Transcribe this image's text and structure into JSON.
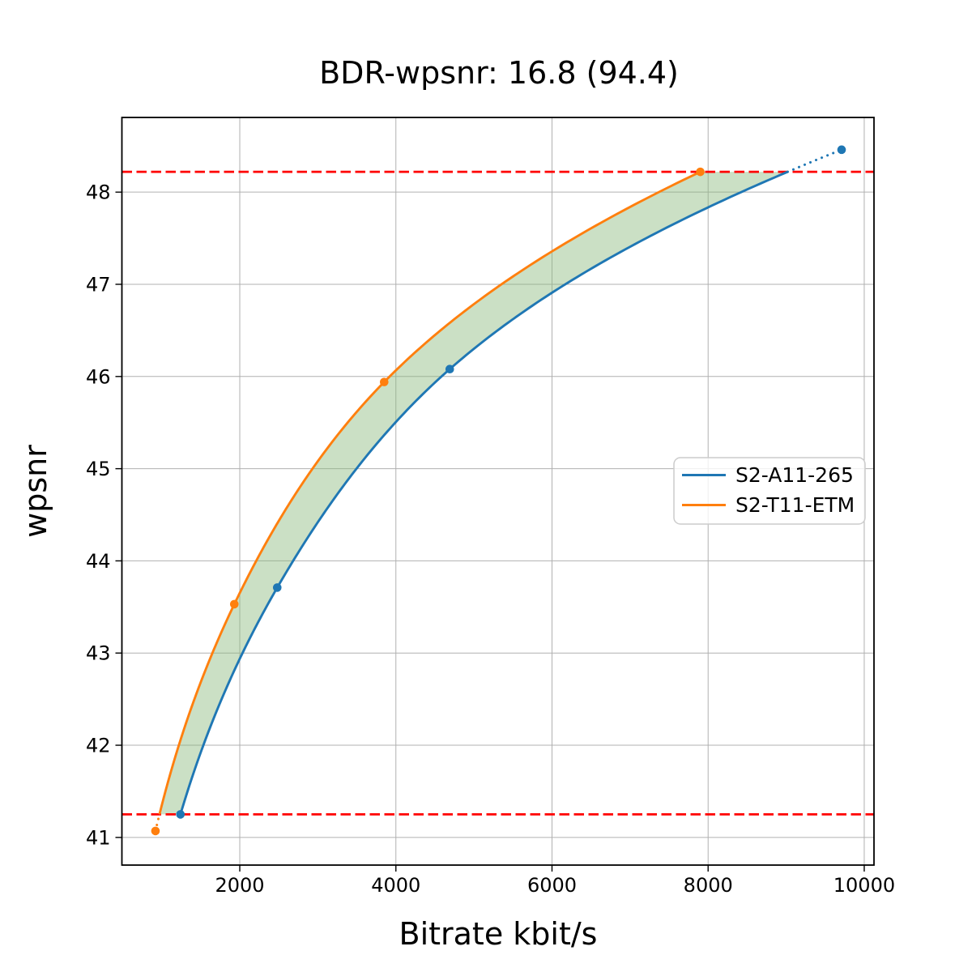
{
  "chart_data": {
    "type": "line",
    "title": "BDR-wpsnr: 16.8 (94.4)",
    "xlabel": "Bitrate kbit/s",
    "ylabel": "wpsnr",
    "xlim": [
      490,
      10125
    ],
    "ylim": [
      40.7,
      48.81
    ],
    "xticks": [
      2000,
      4000,
      6000,
      8000,
      10000
    ],
    "yticks": [
      41,
      42,
      43,
      44,
      45,
      46,
      47,
      48
    ],
    "grid": true,
    "interpolation": "pchip-on-log-bitrate",
    "legend_position": "center-right",
    "series": [
      {
        "name": "S2-A11-265",
        "color": "#1f77b4",
        "points": [
          [
            1240,
            41.25
          ],
          [
            2480,
            43.71
          ],
          [
            4690,
            46.08
          ],
          [
            9710,
            48.46
          ]
        ]
      },
      {
        "name": "S2-T11-ETM",
        "color": "#ff7f0e",
        "points": [
          [
            920,
            41.07
          ],
          [
            1930,
            43.53
          ],
          [
            3850,
            45.94
          ],
          [
            7900,
            48.22
          ]
        ]
      }
    ],
    "overlap_band": {
      "low": 41.25,
      "high": 48.22,
      "line_color": "#ff0000",
      "line_style": "dashed",
      "fill_color": "#8cbb7e",
      "fill_opacity": 0.45
    },
    "colors": {
      "grid": "#b0b0b0",
      "spine": "#000000",
      "text": "#000000",
      "background": "#ffffff",
      "legend_border": "#cccccc"
    }
  }
}
